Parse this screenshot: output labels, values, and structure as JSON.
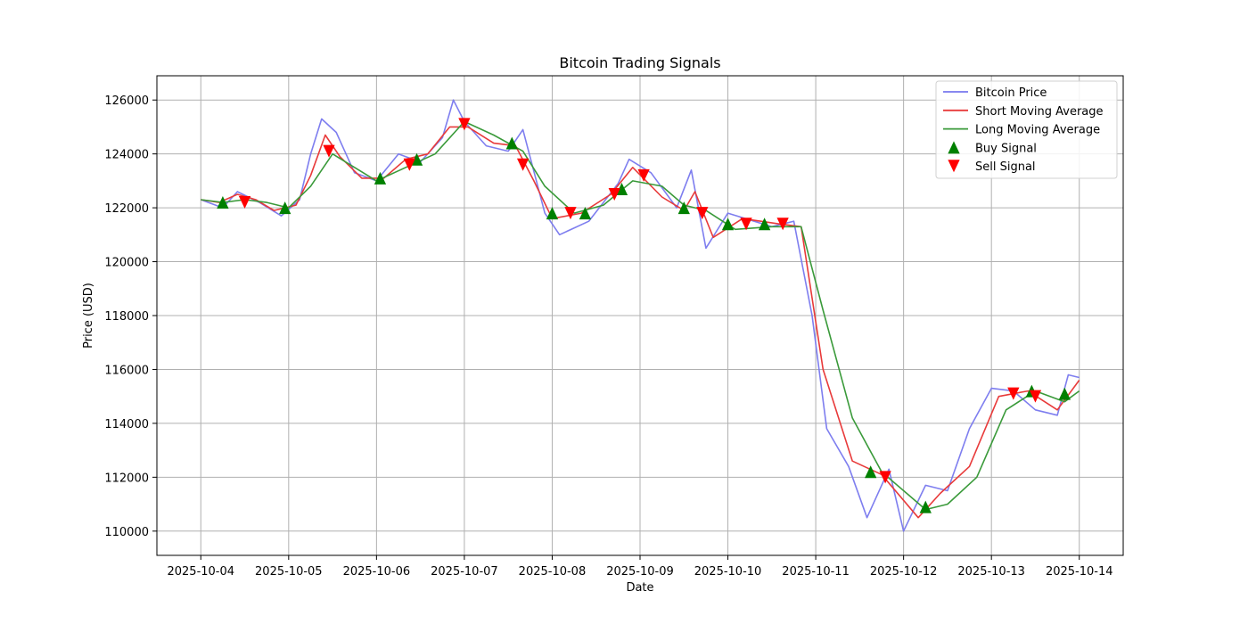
{
  "chart_data": {
    "type": "line",
    "title": "Bitcoin Trading Signals",
    "xlabel": "Date",
    "ylabel": "Price (USD)",
    "xlim": [
      "2025-10-03T12:00",
      "2025-10-14T12:00"
    ],
    "ylim": [
      109100,
      126900
    ],
    "x_ticks": [
      "2025-10-04",
      "2025-10-05",
      "2025-10-06",
      "2025-10-07",
      "2025-10-08",
      "2025-10-09",
      "2025-10-10",
      "2025-10-11",
      "2025-10-12",
      "2025-10-13",
      "2025-10-14"
    ],
    "y_ticks": [
      110000,
      112000,
      114000,
      116000,
      118000,
      120000,
      122000,
      124000,
      126000
    ],
    "grid": true,
    "legend_position": "top-right",
    "series": [
      {
        "name": "Bitcoin Price",
        "color": "#7777ee",
        "points": [
          [
            "2025-10-04T00:00",
            122300
          ],
          [
            "2025-10-04T06:00",
            122000
          ],
          [
            "2025-10-04T10:00",
            122600
          ],
          [
            "2025-10-04T16:00",
            122200
          ],
          [
            "2025-10-04T22:00",
            121700
          ],
          [
            "2025-10-05T03:00",
            122300
          ],
          [
            "2025-10-05T06:00",
            124000
          ],
          [
            "2025-10-05T09:00",
            125300
          ],
          [
            "2025-10-05T13:00",
            124800
          ],
          [
            "2025-10-05T18:00",
            123300
          ],
          [
            "2025-10-06T00:00",
            123000
          ],
          [
            "2025-10-06T06:00",
            124000
          ],
          [
            "2025-10-06T12:00",
            123700
          ],
          [
            "2025-10-06T18:00",
            124600
          ],
          [
            "2025-10-06T21:00",
            126000
          ],
          [
            "2025-10-07T00:00",
            125200
          ],
          [
            "2025-10-07T06:00",
            124300
          ],
          [
            "2025-10-07T12:00",
            124100
          ],
          [
            "2025-10-07T16:00",
            124900
          ],
          [
            "2025-10-07T22:00",
            121800
          ],
          [
            "2025-10-08T02:00",
            121000
          ],
          [
            "2025-10-08T10:00",
            121500
          ],
          [
            "2025-10-08T18:00",
            122900
          ],
          [
            "2025-10-08T21:00",
            123800
          ],
          [
            "2025-10-09T03:00",
            123300
          ],
          [
            "2025-10-09T10:00",
            122000
          ],
          [
            "2025-10-09T14:00",
            123400
          ],
          [
            "2025-10-09T18:00",
            120500
          ],
          [
            "2025-10-10T00:00",
            121800
          ],
          [
            "2025-10-10T12:00",
            121300
          ],
          [
            "2025-10-10T18:00",
            121500
          ],
          [
            "2025-10-10T23:00",
            118000
          ],
          [
            "2025-10-11T03:00",
            113800
          ],
          [
            "2025-10-11T09:00",
            112400
          ],
          [
            "2025-10-11T14:00",
            110500
          ],
          [
            "2025-10-11T20:00",
            112300
          ],
          [
            "2025-10-12T00:00",
            110000
          ],
          [
            "2025-10-12T06:00",
            111700
          ],
          [
            "2025-10-12T12:00",
            111500
          ],
          [
            "2025-10-12T18:00",
            113800
          ],
          [
            "2025-10-13T00:00",
            115300
          ],
          [
            "2025-10-13T06:00",
            115200
          ],
          [
            "2025-10-13T12:00",
            114500
          ],
          [
            "2025-10-13T18:00",
            114300
          ],
          [
            "2025-10-13T21:00",
            115800
          ],
          [
            "2025-10-14T00:00",
            115700
          ]
        ]
      },
      {
        "name": "Short Moving Average",
        "color": "#e83a3a",
        "points": [
          [
            "2025-10-04T00:00",
            122300
          ],
          [
            "2025-10-04T05:00",
            122200
          ],
          [
            "2025-10-04T10:00",
            122500
          ],
          [
            "2025-10-04T15:00",
            122300
          ],
          [
            "2025-10-04T20:00",
            121900
          ],
          [
            "2025-10-05T02:00",
            122100
          ],
          [
            "2025-10-05T06:00",
            123200
          ],
          [
            "2025-10-05T10:00",
            124700
          ],
          [
            "2025-10-05T14:00",
            123900
          ],
          [
            "2025-10-05T20:00",
            123100
          ],
          [
            "2025-10-06T02:00",
            123100
          ],
          [
            "2025-10-06T08:00",
            123800
          ],
          [
            "2025-10-06T14:00",
            124000
          ],
          [
            "2025-10-06T20:00",
            125000
          ],
          [
            "2025-10-07T01:00",
            125000
          ],
          [
            "2025-10-07T08:00",
            124400
          ],
          [
            "2025-10-07T14:00",
            124300
          ],
          [
            "2025-10-07T19:00",
            123000
          ],
          [
            "2025-10-08T00:00",
            121600
          ],
          [
            "2025-10-08T08:00",
            121800
          ],
          [
            "2025-10-08T16:00",
            122500
          ],
          [
            "2025-10-08T22:00",
            123500
          ],
          [
            "2025-10-09T06:00",
            122400
          ],
          [
            "2025-10-09T12:00",
            121900
          ],
          [
            "2025-10-09T15:00",
            122600
          ],
          [
            "2025-10-09T20:00",
            120900
          ],
          [
            "2025-10-10T04:00",
            121600
          ],
          [
            "2025-10-10T14:00",
            121400
          ],
          [
            "2025-10-10T20:00",
            121300
          ],
          [
            "2025-10-11T02:00",
            116000
          ],
          [
            "2025-10-11T10:00",
            112600
          ],
          [
            "2025-10-11T18:00",
            112100
          ],
          [
            "2025-10-12T04:00",
            110500
          ],
          [
            "2025-10-12T10:00",
            111400
          ],
          [
            "2025-10-12T18:00",
            112400
          ],
          [
            "2025-10-13T02:00",
            115000
          ],
          [
            "2025-10-13T10:00",
            115200
          ],
          [
            "2025-10-13T18:00",
            114500
          ],
          [
            "2025-10-14T00:00",
            115600
          ]
        ]
      },
      {
        "name": "Long Moving Average",
        "color": "#3a9a3a",
        "points": [
          [
            "2025-10-04T00:00",
            122300
          ],
          [
            "2025-10-04T06:00",
            122200
          ],
          [
            "2025-10-04T12:00",
            122300
          ],
          [
            "2025-10-04T18:00",
            122200
          ],
          [
            "2025-10-05T00:00",
            122000
          ],
          [
            "2025-10-05T06:00",
            122800
          ],
          [
            "2025-10-05T12:00",
            124000
          ],
          [
            "2025-10-05T18:00",
            123500
          ],
          [
            "2025-10-06T00:00",
            123000
          ],
          [
            "2025-10-06T08:00",
            123500
          ],
          [
            "2025-10-06T16:00",
            124000
          ],
          [
            "2025-10-07T00:00",
            125200
          ],
          [
            "2025-10-07T08:00",
            124700
          ],
          [
            "2025-10-07T16:00",
            124100
          ],
          [
            "2025-10-07T22:00",
            122800
          ],
          [
            "2025-10-08T06:00",
            121800
          ],
          [
            "2025-10-08T14:00",
            122100
          ],
          [
            "2025-10-08T22:00",
            123000
          ],
          [
            "2025-10-09T06:00",
            122800
          ],
          [
            "2025-10-09T12:00",
            122100
          ],
          [
            "2025-10-09T18:00",
            121900
          ],
          [
            "2025-10-10T02:00",
            121200
          ],
          [
            "2025-10-10T12:00",
            121300
          ],
          [
            "2025-10-10T20:00",
            121300
          ],
          [
            "2025-10-11T02:00",
            118200
          ],
          [
            "2025-10-11T10:00",
            114200
          ],
          [
            "2025-10-11T18:00",
            112200
          ],
          [
            "2025-10-12T06:00",
            110800
          ],
          [
            "2025-10-12T12:00",
            111000
          ],
          [
            "2025-10-12T20:00",
            112000
          ],
          [
            "2025-10-13T04:00",
            114500
          ],
          [
            "2025-10-13T12:00",
            115200
          ],
          [
            "2025-10-13T20:00",
            114800
          ],
          [
            "2025-10-14T00:00",
            115200
          ]
        ]
      },
      {
        "name": "Buy Signal",
        "color": "#008000",
        "marker": "triangle-up",
        "points": [
          [
            "2025-10-04T06:00",
            122200
          ],
          [
            "2025-10-04T23:00",
            122000
          ],
          [
            "2025-10-06T01:00",
            123100
          ],
          [
            "2025-10-06T11:00",
            123800
          ],
          [
            "2025-10-07T13:00",
            124400
          ],
          [
            "2025-10-08T00:00",
            121800
          ],
          [
            "2025-10-08T09:00",
            121800
          ],
          [
            "2025-10-08T19:00",
            122700
          ],
          [
            "2025-10-09T12:00",
            122000
          ],
          [
            "2025-10-10T00:00",
            121400
          ],
          [
            "2025-10-10T10:00",
            121400
          ],
          [
            "2025-10-11T15:00",
            112200
          ],
          [
            "2025-10-12T06:00",
            110900
          ],
          [
            "2025-10-13T11:00",
            115200
          ],
          [
            "2025-10-13T20:00",
            115100
          ]
        ]
      },
      {
        "name": "Sell Signal",
        "color": "#ff0000",
        "marker": "triangle-down",
        "points": [
          [
            "2025-10-04T12:00",
            122200
          ],
          [
            "2025-10-05T11:00",
            124100
          ],
          [
            "2025-10-06T09:00",
            123600
          ],
          [
            "2025-10-07T00:00",
            125100
          ],
          [
            "2025-10-07T16:00",
            123600
          ],
          [
            "2025-10-08T05:00",
            121800
          ],
          [
            "2025-10-08T17:00",
            122500
          ],
          [
            "2025-10-09T01:00",
            123200
          ],
          [
            "2025-10-09T17:00",
            121800
          ],
          [
            "2025-10-10T05:00",
            121400
          ],
          [
            "2025-10-10T15:00",
            121400
          ],
          [
            "2025-10-11T19:00",
            112000
          ],
          [
            "2025-10-13T06:00",
            115100
          ],
          [
            "2025-10-13T12:00",
            115000
          ]
        ]
      }
    ]
  }
}
